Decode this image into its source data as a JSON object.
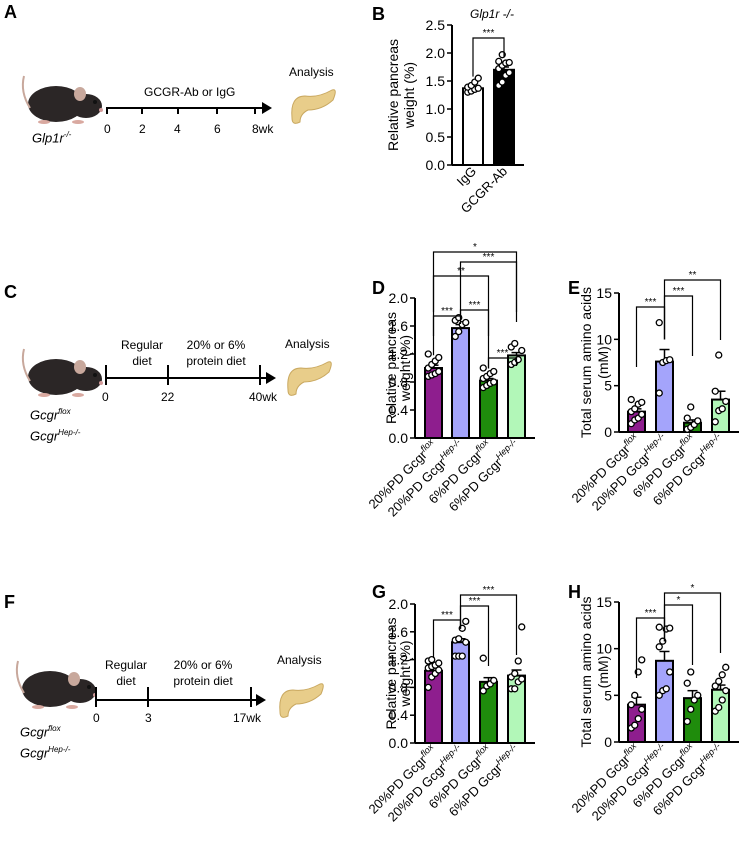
{
  "panels": {
    "A": {
      "letter": "A",
      "treatment": "GCGR-Ab or IgG",
      "analysis": "Analysis",
      "mouse_base": "Glp1r",
      "mouse_sup": "-/-",
      "ticks": [
        "0",
        "2",
        "4",
        "6",
        "8wk"
      ]
    },
    "C": {
      "letter": "C",
      "phase1": [
        "Regular",
        "diet"
      ],
      "phase2": [
        "20% or 6%",
        "protein diet"
      ],
      "analysis": "Analysis",
      "mouse_lines": [
        {
          "base": "Gcgr",
          "sup": "flox"
        },
        {
          "base": "Gcgr",
          "sup": "Hep-/-"
        }
      ],
      "ticks": [
        "0",
        "22",
        "40wk"
      ]
    },
    "F": {
      "letter": "F",
      "phase1": [
        "Regular",
        "diet"
      ],
      "phase2": [
        "20% or 6%",
        "protein diet"
      ],
      "analysis": "Analysis",
      "mouse_lines": [
        {
          "base": "Gcgr",
          "sup": "flox"
        },
        {
          "base": "Gcgr",
          "sup": "Hep-/-"
        }
      ],
      "ticks": [
        "0",
        "3",
        "17wk"
      ]
    }
  },
  "colors": {
    "igg": "#ffffff",
    "gcgr_ab": "#000000",
    "pd20_flox": "#8e1e8e",
    "pd20_hep": "#a4a4fb",
    "pd6_flox": "#1f8c0c",
    "pd6_hep": "#b2f7b8"
  },
  "chart_data": [
    {
      "id": "B",
      "letter": "B",
      "type": "bar",
      "title": "Glp1r -/-",
      "ylabel": [
        "Relative pancreas",
        "weight (%)"
      ],
      "ylim": [
        0,
        2.5
      ],
      "yticks": [
        "0.0",
        "0.5",
        "1.0",
        "1.5",
        "2.0",
        "2.5"
      ],
      "categories": [
        {
          "base": "IgG",
          "sup": ""
        },
        {
          "base": "GCGR-Ab",
          "sup": ""
        }
      ],
      "values": [
        1.37,
        1.7
      ],
      "sem": [
        0.03,
        0.05
      ],
      "points": [
        [
          1.3,
          1.32,
          1.35,
          1.37,
          1.39,
          1.42,
          1.48,
          1.55
        ],
        [
          1.42,
          1.48,
          1.6,
          1.65,
          1.72,
          1.78,
          1.82,
          1.83,
          1.85,
          1.97
        ]
      ],
      "fill_keys": [
        "igg",
        "gcgr_ab"
      ],
      "significance": [
        {
          "from": 0,
          "to": 1,
          "label": "***",
          "level": 0
        }
      ]
    },
    {
      "id": "D",
      "letter": "D",
      "type": "bar",
      "ylabel": [
        "Relative pancreas",
        "weight (%)"
      ],
      "ylim": [
        0,
        2.0
      ],
      "yticks": [
        "0.0",
        "0.4",
        "0.8",
        "1.2",
        "1.6",
        "2.0"
      ],
      "categories": [
        {
          "base": "20%PD Gcgr",
          "sup": "flox"
        },
        {
          "base": "20%PD Gcgr",
          "sup": "Hep-/-"
        },
        {
          "base": "6%PD Gcgr",
          "sup": "flox"
        },
        {
          "base": "6%PD Gcgr",
          "sup": "Hep-/-"
        }
      ],
      "values": [
        1.0,
        1.57,
        0.82,
        1.18
      ],
      "sem": [
        0.04,
        0.05,
        0.03,
        0.04
      ],
      "points": [
        [
          0.88,
          0.9,
          0.92,
          0.95,
          1.0,
          1.05,
          1.1,
          1.15,
          1.2
        ],
        [
          1.45,
          1.52,
          1.62,
          1.65,
          1.68,
          1.72
        ],
        [
          0.72,
          0.75,
          0.78,
          0.8,
          0.85,
          0.88,
          0.92,
          0.95,
          1.0
        ],
        [
          1.05,
          1.08,
          1.12,
          1.25,
          1.3,
          1.35
        ]
      ],
      "fill_keys": [
        "pd20_flox",
        "pd20_hep",
        "pd6_flox",
        "pd6_hep"
      ],
      "significance": [
        {
          "from": 0,
          "to": 1,
          "label": "***",
          "level": 0
        },
        {
          "from": 1,
          "to": 2,
          "label": "***",
          "level": 0
        },
        {
          "from": 2,
          "to": 3,
          "label": "***",
          "level": 0
        },
        {
          "from": 0,
          "to": 2,
          "label": "**",
          "level": 1
        },
        {
          "from": 1,
          "to": 3,
          "label": "***",
          "level": 2
        },
        {
          "from": 0,
          "to": 3,
          "label": "*",
          "level": 3
        }
      ]
    },
    {
      "id": "E",
      "letter": "E",
      "type": "bar",
      "ylabel": [
        "Total serum amino acids",
        "(mM)"
      ],
      "ylim": [
        0,
        15
      ],
      "yticks": [
        "0",
        "5",
        "10",
        "15"
      ],
      "categories": [
        {
          "base": "20%PD Gcgr",
          "sup": "flox"
        },
        {
          "base": "20%PD Gcgr",
          "sup": "Hep-/-"
        },
        {
          "base": "6%PD Gcgr",
          "sup": "flox"
        },
        {
          "base": "6%PD Gcgr",
          "sup": "Hep-/-"
        }
      ],
      "values": [
        2.2,
        7.6,
        1.0,
        3.5
      ],
      "sem": [
        0.3,
        1.3,
        0.3,
        0.9
      ],
      "points": [
        [
          0.9,
          1.3,
          1.5,
          1.9,
          2.2,
          2.5,
          3.0,
          3.2,
          3.5
        ],
        [
          4.2,
          7.5,
          7.7,
          7.8,
          11.8
        ],
        [
          0.3,
          0.5,
          0.8,
          1.2,
          1.5,
          2.7
        ],
        [
          1.1,
          2.3,
          2.5,
          3.3,
          4.4,
          8.3
        ]
      ],
      "fill_keys": [
        "pd20_flox",
        "pd20_hep",
        "pd6_flox",
        "pd6_hep"
      ],
      "significance": [
        {
          "from": 0,
          "to": 1,
          "label": "***",
          "level": 0
        },
        {
          "from": 1,
          "to": 2,
          "label": "***",
          "level": 1
        },
        {
          "from": 1,
          "to": 3,
          "label": "**",
          "level": 2
        }
      ]
    },
    {
      "id": "G",
      "letter": "G",
      "type": "bar",
      "ylabel": [
        "Relative pancreas",
        "weight (%)"
      ],
      "ylim": [
        0,
        2.0
      ],
      "yticks": [
        "0.0",
        "0.4",
        "0.8",
        "1.2",
        "1.6",
        "2.0"
      ],
      "categories": [
        {
          "base": "20%PD Gcgr",
          "sup": "flox"
        },
        {
          "base": "20%PD Gcgr",
          "sup": "Hep-/-"
        },
        {
          "base": "6%PD Gcgr",
          "sup": "flox"
        },
        {
          "base": "6%PD Gcgr",
          "sup": "Hep-/-"
        }
      ],
      "values": [
        1.04,
        1.45,
        0.88,
        0.97
      ],
      "sem": [
        0.04,
        0.05,
        0.06,
        0.08
      ],
      "points": [
        [
          0.8,
          0.95,
          1.0,
          1.05,
          1.08,
          1.1,
          1.12,
          1.15,
          1.18,
          1.2
        ],
        [
          1.25,
          1.25,
          1.25,
          1.45,
          1.48,
          1.5,
          1.65,
          1.75
        ],
        [
          0.75,
          0.82,
          0.85,
          0.9,
          1.22
        ],
        [
          0.78,
          0.78,
          0.88,
          0.92,
          0.95,
          1.0,
          1.18,
          1.67
        ]
      ],
      "fill_keys": [
        "pd20_flox",
        "pd20_hep",
        "pd6_flox",
        "pd6_hep"
      ],
      "significance": [
        {
          "from": 0,
          "to": 1,
          "label": "***",
          "level": 0
        },
        {
          "from": 1,
          "to": 2,
          "label": "***",
          "level": 1
        },
        {
          "from": 1,
          "to": 3,
          "label": "***",
          "level": 2
        }
      ]
    },
    {
      "id": "H",
      "letter": "H",
      "type": "bar",
      "ylabel": [
        "Total serum amino acids",
        "(mM)"
      ],
      "ylim": [
        0,
        15
      ],
      "yticks": [
        "0",
        "5",
        "10",
        "15"
      ],
      "categories": [
        {
          "base": "20%PD Gcgr",
          "sup": "flox"
        },
        {
          "base": "20%PD Gcgr",
          "sup": "Hep-/-"
        },
        {
          "base": "6%PD Gcgr",
          "sup": "flox"
        },
        {
          "base": "6%PD Gcgr",
          "sup": "Hep-/-"
        }
      ],
      "values": [
        4.0,
        8.7,
        4.7,
        5.6
      ],
      "sem": [
        0.8,
        1.0,
        0.8,
        0.5
      ],
      "points": [
        [
          1.5,
          1.8,
          2.5,
          3.5,
          4.0,
          5.0,
          7.5,
          8.8
        ],
        [
          5.0,
          5.5,
          5.7,
          7.5,
          10.2,
          10.8,
          12.1,
          12.2,
          12.3
        ],
        [
          2.2,
          3.5,
          4.5,
          5.0,
          6.3,
          7.5
        ],
        [
          3.3,
          3.7,
          4.5,
          5.5,
          6.0,
          6.5,
          7.2,
          8.0
        ]
      ],
      "fill_keys": [
        "pd20_flox",
        "pd20_hep",
        "pd6_flox",
        "pd6_hep"
      ],
      "significance": [
        {
          "from": 0,
          "to": 1,
          "label": "***",
          "level": 0
        },
        {
          "from": 1,
          "to": 2,
          "label": "*",
          "level": 1
        },
        {
          "from": 1,
          "to": 3,
          "label": "*",
          "level": 2
        }
      ]
    }
  ]
}
